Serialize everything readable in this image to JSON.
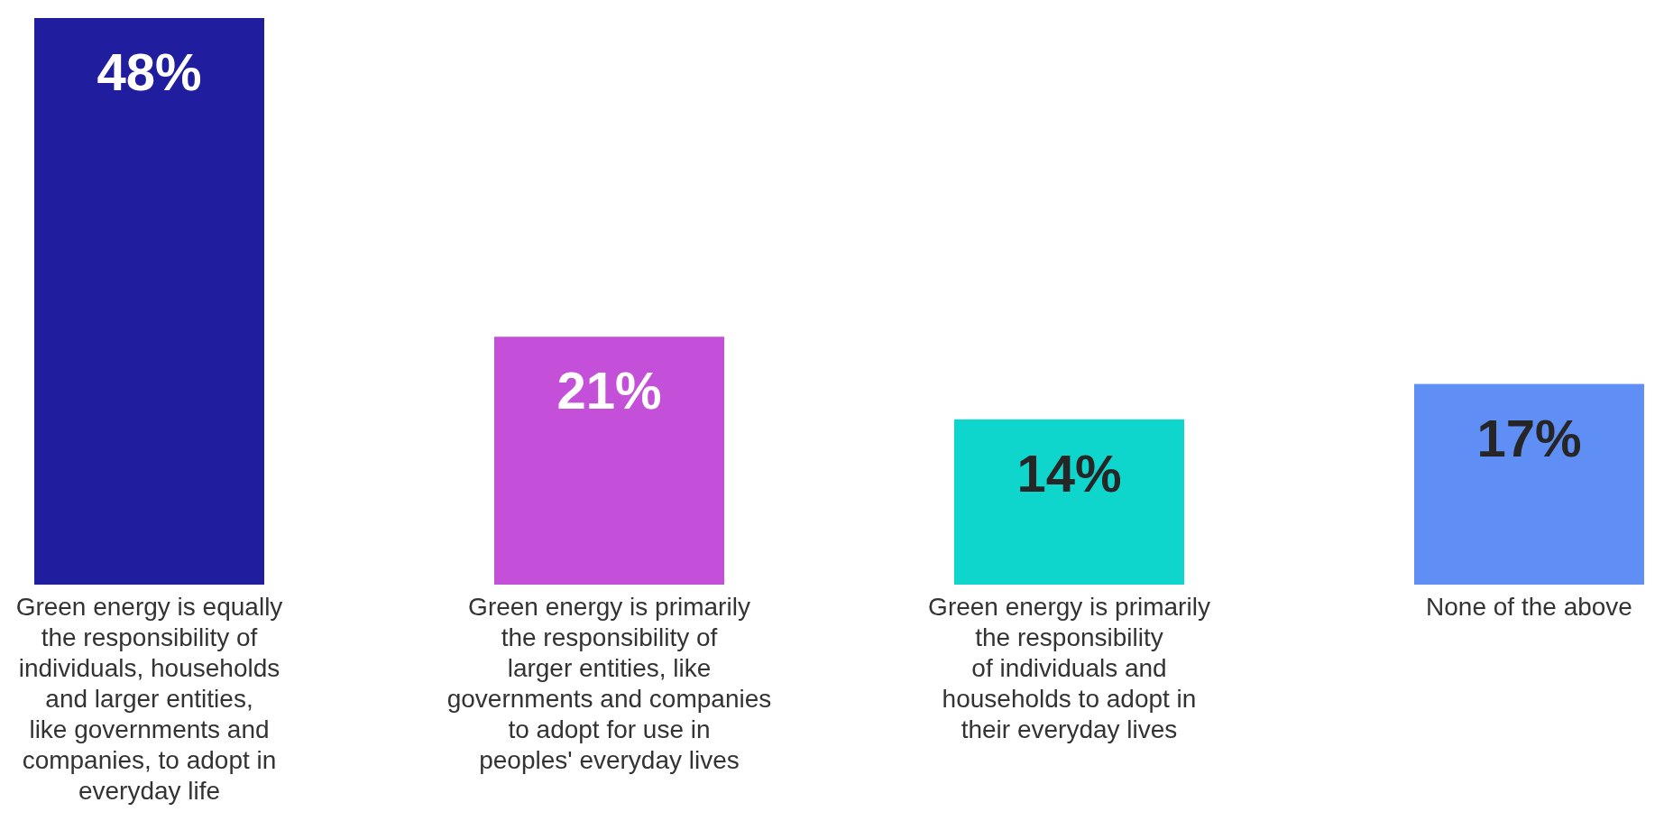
{
  "chart_data": {
    "type": "bar",
    "categories": [
      "Green energy is equally\nthe responsibility of\nindividuals, households\nand larger entities,\nlike governments and\ncompanies, to adopt in\neveryday life",
      "Green energy is primarily\nthe responsibility of\nlarger entities, like\ngovernments and companies\nto adopt for use in\npeoples' everyday lives",
      "Green energy is primarily\nthe responsibility\nof individuals and\nhouseholds to adopt in\ntheir everyday lives",
      "None of the above"
    ],
    "values": [
      48,
      21,
      14,
      17
    ],
    "colors": [
      "#201d9f",
      "#c44fd8",
      "#0fd6cd",
      "#5f8ff5"
    ],
    "value_labels": [
      "48%",
      "21%",
      "14%",
      "17%"
    ]
  }
}
